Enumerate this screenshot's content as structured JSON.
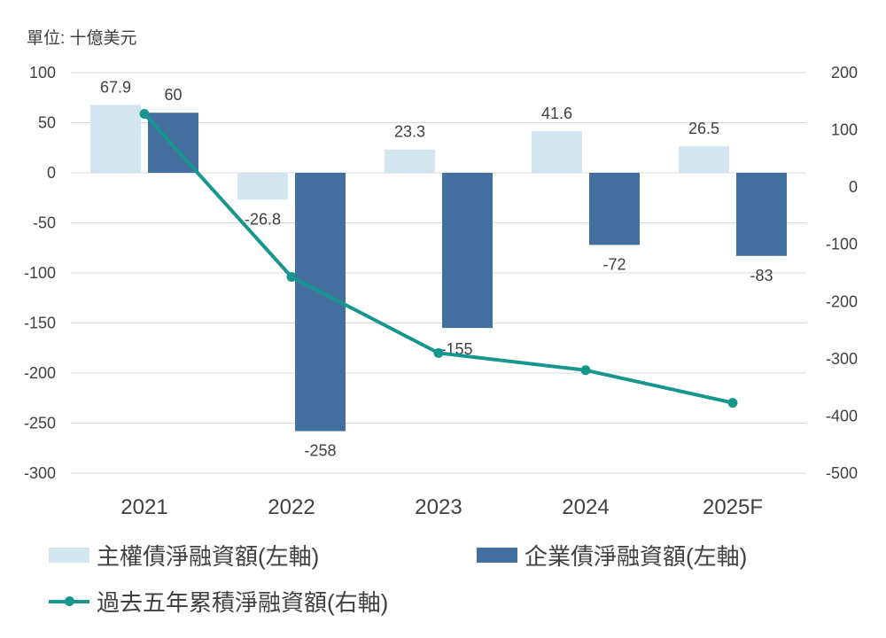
{
  "unit_label": "單位: 十億美元",
  "colors": {
    "sovereign": "#d3e6f0",
    "corporate": "#43709e",
    "cumulative": "#16968f",
    "grid": "#d9d9d9",
    "text": "#404040"
  },
  "chart_data": {
    "type": "bar",
    "categories": [
      "2021",
      "2022",
      "2023",
      "2024",
      "2025F"
    ],
    "series": [
      {
        "name": "主權債淨融資額(左軸)",
        "axis": "left",
        "kind": "bar",
        "values": [
          67.9,
          -26.8,
          23.3,
          41.6,
          26.5
        ],
        "labels": [
          "67.9",
          "-26.8",
          "23.3",
          "41.6",
          "26.5"
        ]
      },
      {
        "name": "企業債淨融資額(左軸)",
        "axis": "left",
        "kind": "bar",
        "values": [
          60,
          -258,
          -155,
          -72,
          -83
        ],
        "labels": [
          "60",
          "-258",
          "-155",
          "-72",
          "-83"
        ]
      },
      {
        "name": "過去五年累積淨融資額(右軸)",
        "axis": "right",
        "kind": "line",
        "values": [
          128,
          -157,
          -290,
          -320,
          -377
        ]
      }
    ],
    "y_left": {
      "min": -300,
      "max": 100,
      "ticks": [
        "100",
        "50",
        "0",
        "-50",
        "-100",
        "-150",
        "-200",
        "-250",
        "-300"
      ]
    },
    "y_right": {
      "min": -500,
      "max": 200,
      "ticks": [
        "200",
        "100",
        "0",
        "-100",
        "-200",
        "-300",
        "-400",
        "-500"
      ]
    },
    "grid": true,
    "legend_position": "bottom"
  }
}
